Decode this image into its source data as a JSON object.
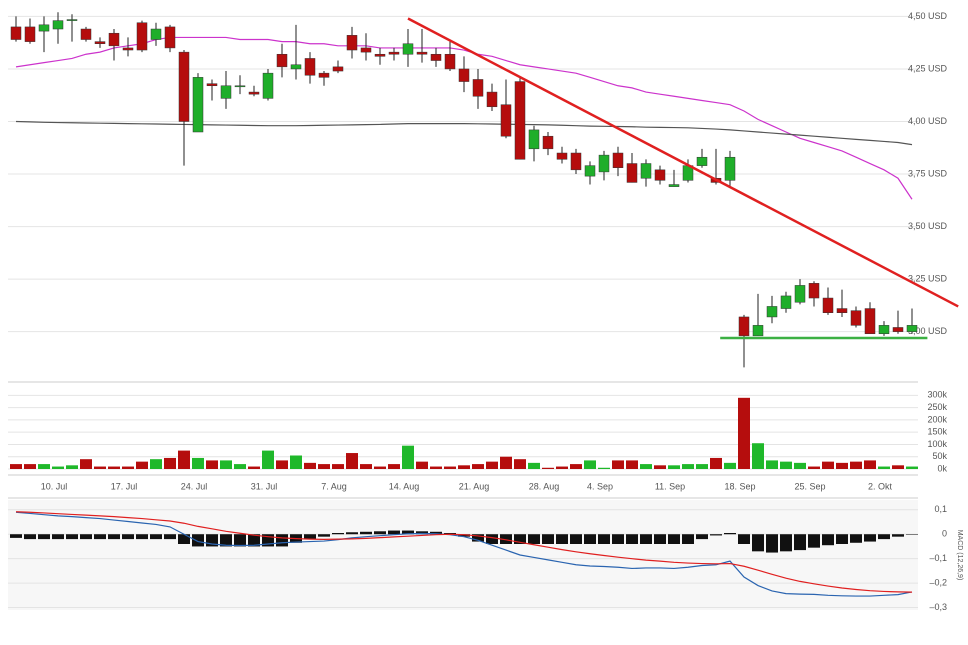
{
  "chart_data": [
    {
      "type": "candlestick",
      "open": [
        4.45,
        4.45,
        4.43,
        4.44,
        4.48,
        4.44,
        4.38,
        4.42,
        4.35,
        4.47,
        4.39,
        4.45,
        4.33,
        3.95,
        4.18,
        4.11,
        4.165,
        4.14,
        4.11,
        4.32,
        4.25,
        4.3,
        4.23,
        4.26,
        4.41,
        4.35,
        4.32,
        4.33,
        4.32,
        4.33,
        4.32,
        4.32,
        4.25,
        4.2,
        4.14,
        4.08,
        4.19,
        3.87,
        3.93,
        3.85,
        3.85,
        3.74,
        3.76,
        3.85,
        3.8,
        3.73,
        3.77,
        3.69,
        3.72,
        3.79,
        3.73,
        3.72,
        3.07,
        2.98,
        3.07,
        3.11,
        3.14,
        3.23,
        3.16,
        3.11,
        3.1,
        3.11,
        2.99,
        3.02,
        3.0
      ],
      "high": [
        4.5,
        4.49,
        4.5,
        4.52,
        4.51,
        4.45,
        4.4,
        4.44,
        4.4,
        4.48,
        4.47,
        4.46,
        4.34,
        4.23,
        4.2,
        4.24,
        4.22,
        4.17,
        4.25,
        4.37,
        4.46,
        4.33,
        4.24,
        4.29,
        4.45,
        4.42,
        4.35,
        4.35,
        4.44,
        4.44,
        4.35,
        4.39,
        4.31,
        4.25,
        4.18,
        4.2,
        4.21,
        3.98,
        3.95,
        3.88,
        3.87,
        3.81,
        3.86,
        3.88,
        3.85,
        3.82,
        3.79,
        3.77,
        3.82,
        3.87,
        3.87,
        3.86,
        3.08,
        3.18,
        3.17,
        3.19,
        3.25,
        3.24,
        3.21,
        3.2,
        3.12,
        3.14,
        3.05,
        3.1,
        3.11
      ],
      "low": [
        4.38,
        4.37,
        4.33,
        4.37,
        4.38,
        4.38,
        4.35,
        4.29,
        4.31,
        4.33,
        4.36,
        4.33,
        3.79,
        3.95,
        4.1,
        4.06,
        4.13,
        4.12,
        4.1,
        4.21,
        4.2,
        4.18,
        4.17,
        4.23,
        4.3,
        4.29,
        4.27,
        4.29,
        4.26,
        4.28,
        4.26,
        4.24,
        4.14,
        4.06,
        4.05,
        3.92,
        3.82,
        3.81,
        3.84,
        3.8,
        3.75,
        3.7,
        3.72,
        3.74,
        3.71,
        3.69,
        3.7,
        3.69,
        3.71,
        3.78,
        3.7,
        3.69,
        2.83,
        2.98,
        3.04,
        3.09,
        3.13,
        3.12,
        3.08,
        3.07,
        3.02,
        2.99,
        2.98,
        2.99,
        2.99
      ],
      "close": [
        4.39,
        4.38,
        4.46,
        4.48,
        4.485,
        4.39,
        4.37,
        4.36,
        4.34,
        4.34,
        4.44,
        4.35,
        4.0,
        4.21,
        4.17,
        4.17,
        4.17,
        4.13,
        4.23,
        4.26,
        4.27,
        4.22,
        4.21,
        4.24,
        4.34,
        4.33,
        4.31,
        4.32,
        4.37,
        4.32,
        4.29,
        4.25,
        4.19,
        4.12,
        4.07,
        3.93,
        3.82,
        3.96,
        3.87,
        3.82,
        3.77,
        3.79,
        3.84,
        3.78,
        3.71,
        3.8,
        3.72,
        3.7,
        3.79,
        3.83,
        3.71,
        3.83,
        2.98,
        3.03,
        3.12,
        3.17,
        3.22,
        3.16,
        3.09,
        3.09,
        3.03,
        2.99,
        3.03,
        3.0,
        3.03
      ],
      "up_color": "#1fae2a",
      "down_color": "#b50d0d",
      "series": [
        {
          "color": "#cc33cc",
          "values": [
            4.26,
            4.27,
            4.28,
            4.29,
            4.3,
            4.32,
            4.33,
            4.35,
            4.36,
            4.37,
            4.39,
            4.4,
            4.4,
            4.4,
            4.4,
            4.4,
            4.39,
            4.39,
            4.39,
            4.38,
            4.38,
            4.37,
            4.37,
            4.36,
            4.36,
            4.36,
            4.35,
            4.35,
            4.35,
            4.35,
            4.35,
            4.35,
            4.34,
            4.32,
            4.31,
            4.29,
            4.27,
            4.26,
            4.25,
            4.24,
            4.23,
            4.21,
            4.19,
            4.17,
            4.16,
            4.14,
            4.13,
            4.12,
            4.11,
            4.1,
            4.09,
            4.08,
            4.05,
            4.01,
            3.98,
            3.95,
            3.92,
            3.9,
            3.88,
            3.86,
            3.83,
            3.8,
            3.77,
            3.73,
            3.63
          ]
        },
        {
          "color": "#555555",
          "values": [
            4.0,
            3.998,
            3.996,
            3.995,
            3.994,
            3.993,
            3.992,
            3.991,
            3.99,
            3.989,
            3.988,
            3.987,
            3.986,
            3.985,
            3.984,
            3.983,
            3.982,
            3.981,
            3.98,
            3.98,
            3.98,
            3.981,
            3.982,
            3.983,
            3.984,
            3.985,
            3.986,
            3.988,
            3.99,
            3.99,
            3.99,
            3.99,
            3.99,
            3.989,
            3.988,
            3.987,
            3.986,
            3.985,
            3.984,
            3.982,
            3.98,
            3.978,
            3.977,
            3.976,
            3.975,
            3.973,
            3.972,
            3.971,
            3.97,
            3.967,
            3.964,
            3.96,
            3.955,
            3.95,
            3.945,
            3.94,
            3.935,
            3.93,
            3.925,
            3.92,
            3.915,
            3.91,
            3.905,
            3.9,
            3.89
          ]
        }
      ],
      "lines": [
        {
          "color": "#e02020",
          "x": [
            28,
            67.3
          ],
          "values": [
            4.49,
            3.12
          ]
        },
        {
          "color": "#3cb043",
          "x": [
            50.3,
            65.1
          ],
          "values": [
            2.97,
            2.97
          ]
        }
      ],
      "ylim": [
        2.77,
        4.54
      ],
      "yticks": [
        {
          "value": 4.5,
          "label": "4,50 USD"
        },
        {
          "value": 4.25,
          "label": "4,25 USD"
        },
        {
          "value": 4.0,
          "label": "4,00 USD"
        },
        {
          "value": 3.75,
          "label": "3,75 USD"
        },
        {
          "value": 3.5,
          "label": "3,50 USD"
        },
        {
          "value": 3.25,
          "label": "3,25 USD"
        },
        {
          "value": 3.0,
          "label": "3,00 USD"
        }
      ],
      "grid": true
    },
    {
      "type": "bar",
      "categories": [
        null,
        null,
        null,
        "10. Jul",
        null,
        null,
        null,
        null,
        "17. Jul",
        null,
        null,
        null,
        null,
        "24. Jul",
        null,
        null,
        null,
        null,
        "31. Jul",
        null,
        null,
        null,
        null,
        "7. Aug",
        null,
        null,
        null,
        null,
        "14. Aug",
        null,
        null,
        null,
        null,
        "21. Aug",
        null,
        null,
        null,
        null,
        "28. Aug",
        null,
        null,
        null,
        "4. Sep",
        null,
        null,
        null,
        null,
        "11. Sep",
        null,
        null,
        null,
        null,
        "18. Sep",
        null,
        null,
        null,
        null,
        "25. Sep",
        null,
        null,
        null,
        null,
        "2. Okt",
        null,
        null
      ],
      "values": [
        20000,
        20000,
        20000,
        10000,
        15000,
        40000,
        10000,
        10000,
        10000,
        30000,
        40000,
        45000,
        75000,
        45000,
        35000,
        35000,
        20000,
        10000,
        75000,
        35000,
        55000,
        25000,
        20000,
        20000,
        65000,
        20000,
        10000,
        20000,
        95000,
        30000,
        10000,
        10000,
        15000,
        20000,
        30000,
        50000,
        40000,
        25000,
        5000,
        10000,
        20000,
        35000,
        5000,
        35000,
        35000,
        20000,
        15000,
        15000,
        20000,
        20000,
        45000,
        25000,
        290000,
        105000,
        35000,
        30000,
        25000,
        10000,
        30000,
        25000,
        30000,
        35000,
        10000,
        15000,
        10000
      ],
      "up_color": "#1fb82a",
      "down_color": "#b50d0d",
      "ylim": [
        0,
        330000
      ],
      "yticks": [
        {
          "value": 0,
          "label": "0k"
        },
        {
          "value": 50000,
          "label": "50k"
        },
        {
          "value": 100000,
          "label": "100k"
        },
        {
          "value": 150000,
          "label": "150k"
        },
        {
          "value": 200000,
          "label": "200k"
        },
        {
          "value": 250000,
          "label": "250k"
        },
        {
          "value": 300000,
          "label": "300k"
        }
      ],
      "grid": true
    },
    {
      "type": "combo",
      "ylabel": "MACD (12,26,9)",
      "series": [
        {
          "type": "bar",
          "color": "#111111",
          "values": [
            -0.015,
            -0.02,
            -0.02,
            -0.02,
            -0.02,
            -0.02,
            -0.02,
            -0.02,
            -0.02,
            -0.02,
            -0.02,
            -0.02,
            -0.04,
            -0.05,
            -0.05,
            -0.05,
            -0.05,
            -0.05,
            -0.05,
            -0.05,
            -0.035,
            -0.02,
            -0.01,
            0.005,
            0.008,
            0.01,
            0.012,
            0.015,
            0.015,
            0.012,
            0.01,
            0.005,
            -0.01,
            -0.03,
            -0.04,
            -0.04,
            -0.04,
            -0.04,
            -0.04,
            -0.04,
            -0.04,
            -0.04,
            -0.04,
            -0.04,
            -0.04,
            -0.04,
            -0.04,
            -0.04,
            -0.04,
            -0.02,
            -0.005,
            0.005,
            -0.04,
            -0.07,
            -0.075,
            -0.07,
            -0.065,
            -0.055,
            -0.045,
            -0.04,
            -0.035,
            -0.03,
            -0.02,
            -0.01,
            0.0
          ]
        },
        {
          "type": "line",
          "color": "#2a64b0",
          "values": [
            0.09,
            0.085,
            0.08,
            0.075,
            0.072,
            0.068,
            0.064,
            0.058,
            0.052,
            0.046,
            0.04,
            0.03,
            0.0,
            -0.03,
            -0.04,
            -0.045,
            -0.046,
            -0.045,
            -0.04,
            -0.035,
            -0.032,
            -0.03,
            -0.028,
            -0.022,
            -0.015,
            -0.01,
            -0.006,
            -0.002,
            0.002,
            0.003,
            0.002,
            -0.002,
            -0.01,
            -0.025,
            -0.045,
            -0.065,
            -0.085,
            -0.095,
            -0.105,
            -0.115,
            -0.125,
            -0.13,
            -0.132,
            -0.135,
            -0.14,
            -0.138,
            -0.138,
            -0.14,
            -0.135,
            -0.128,
            -0.125,
            -0.11,
            -0.175,
            -0.21,
            -0.232,
            -0.243,
            -0.245,
            -0.246,
            -0.25,
            -0.252,
            -0.253,
            -0.253,
            -0.25,
            -0.247,
            -0.236
          ]
        },
        {
          "type": "line",
          "color": "#e02020",
          "values": [
            0.092,
            0.09,
            0.087,
            0.084,
            0.081,
            0.078,
            0.075,
            0.072,
            0.068,
            0.064,
            0.059,
            0.054,
            0.045,
            0.032,
            0.022,
            0.012,
            0.004,
            -0.004,
            -0.01,
            -0.015,
            -0.018,
            -0.02,
            -0.021,
            -0.02,
            -0.019,
            -0.017,
            -0.014,
            -0.011,
            -0.008,
            -0.005,
            -0.002,
            0.0,
            -0.002,
            -0.007,
            -0.014,
            -0.023,
            -0.033,
            -0.043,
            -0.053,
            -0.063,
            -0.072,
            -0.08,
            -0.087,
            -0.094,
            -0.1,
            -0.106,
            -0.11,
            -0.115,
            -0.118,
            -0.12,
            -0.121,
            -0.12,
            -0.131,
            -0.147,
            -0.164,
            -0.18,
            -0.193,
            -0.203,
            -0.212,
            -0.22,
            -0.226,
            -0.231,
            -0.234,
            -0.236,
            -0.237
          ]
        }
      ],
      "ylim": [
        -0.31,
        0.14
      ],
      "yticks": [
        {
          "value": 0.1,
          "label": "0,1"
        },
        0,
        {
          "value": -0.1,
          "label": "–0,1"
        },
        {
          "value": -0.2,
          "label": "–0,2"
        },
        {
          "value": -0.3,
          "label": "–0,3"
        }
      ],
      "grid": true
    }
  ]
}
